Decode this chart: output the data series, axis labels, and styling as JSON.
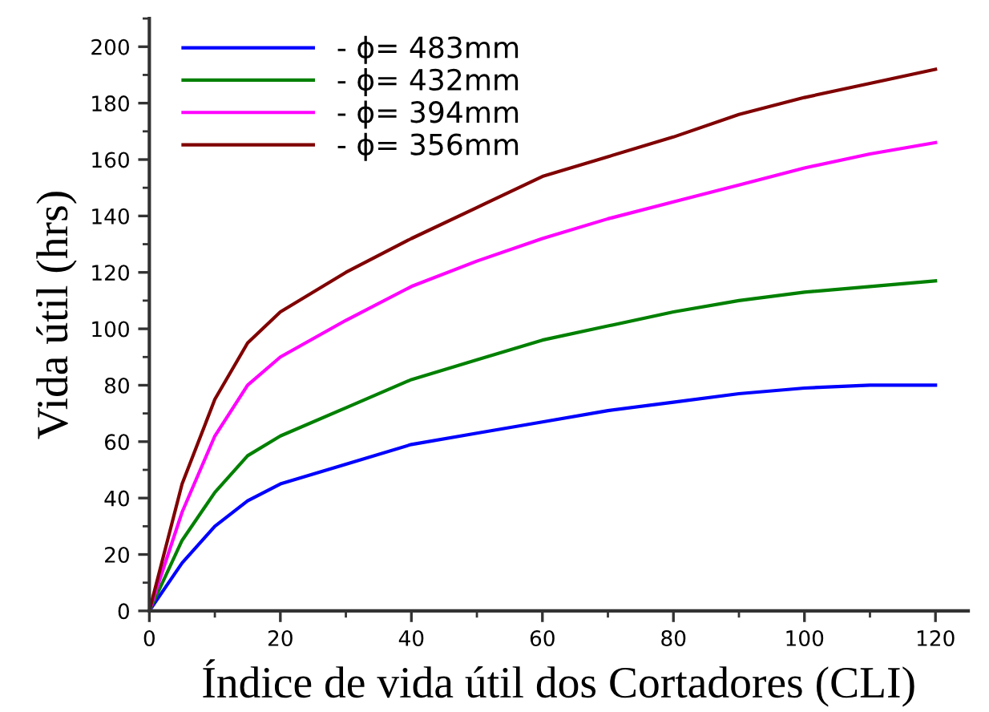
{
  "chart_data": {
    "type": "line",
    "xlabel": "Índice de vida útil dos Cortadores (CLI)",
    "ylabel": "Vida útil (hrs)",
    "x": [
      0,
      5,
      10,
      15,
      20,
      30,
      40,
      50,
      60,
      70,
      80,
      90,
      100,
      110,
      120
    ],
    "series": [
      {
        "name": "- ϕ= 483mm",
        "color": "#0000ff",
        "values": [
          0,
          17,
          30,
          39,
          45,
          52,
          59,
          63,
          67,
          71,
          74,
          77,
          79,
          80,
          80
        ]
      },
      {
        "name": "- ϕ= 432mm",
        "color": "#008000",
        "values": [
          0,
          25,
          42,
          55,
          62,
          72,
          82,
          89,
          96,
          101,
          106,
          110,
          113,
          115,
          117
        ]
      },
      {
        "name": "- ϕ= 394mm",
        "color": "#ff00ff",
        "values": [
          0,
          35,
          62,
          80,
          90,
          103,
          115,
          124,
          132,
          139,
          145,
          151,
          157,
          162,
          166
        ]
      },
      {
        "name": "- ϕ= 356mm",
        "color": "#800000",
        "values": [
          0,
          45,
          75,
          95,
          106,
          120,
          132,
          143,
          154,
          161,
          168,
          176,
          182,
          187,
          192
        ]
      }
    ],
    "xlim": [
      0,
      125
    ],
    "ylim": [
      0,
      210
    ],
    "xticks": [
      0,
      20,
      40,
      60,
      80,
      100,
      120
    ],
    "yticks": [
      0,
      20,
      40,
      60,
      80,
      100,
      120,
      140,
      160,
      180,
      200
    ],
    "grid": false,
    "legend": "top left",
    "line_style": "solid",
    "marker": "none"
  }
}
